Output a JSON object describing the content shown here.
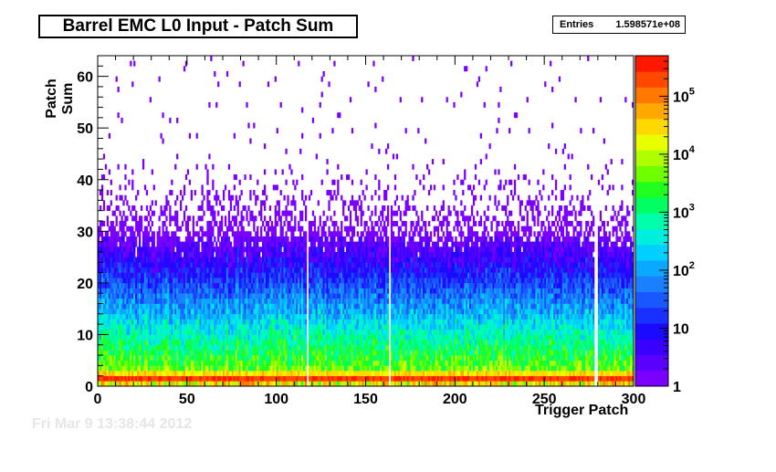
{
  "chart_data": {
    "type": "heatmap",
    "title": "Barrel EMC L0 Input - Patch Sum",
    "stats": {
      "entries_label": "Entries",
      "entries_value": "1.598571e+08"
    },
    "xlabel": "Trigger Patch",
    "ylabel": "Patch Sum",
    "xlim": [
      0,
      300
    ],
    "ylim": [
      0,
      64
    ],
    "x_ticks": [
      "0",
      "50",
      "100",
      "150",
      "200",
      "250",
      "300"
    ],
    "y_ticks": [
      "0",
      "10",
      "20",
      "30",
      "40",
      "50",
      "60"
    ],
    "z_scale": "log",
    "zlim": [
      1,
      500000
    ],
    "z_ticks": [
      "1",
      "10",
      "10^2",
      "10^3",
      "10^4",
      "10^5"
    ],
    "empty_columns": [
      117,
      163,
      278,
      279
    ],
    "palette": [
      "#7a00ff",
      "#5a00ff",
      "#3a00ff",
      "#1a0aff",
      "#1a30ff",
      "#1a58ff",
      "#1a80ff",
      "#0aa8ff",
      "#00cfff",
      "#00eedd",
      "#00ffaa",
      "#00ff60",
      "#20ff20",
      "#70ff00",
      "#b0ff00",
      "#e8ff00",
      "#ffd800",
      "#ffa800",
      "#ff7800",
      "#ff4800",
      "#ff1800"
    ]
  },
  "footer_text": "Fri Mar  9 13:38:44 2012"
}
